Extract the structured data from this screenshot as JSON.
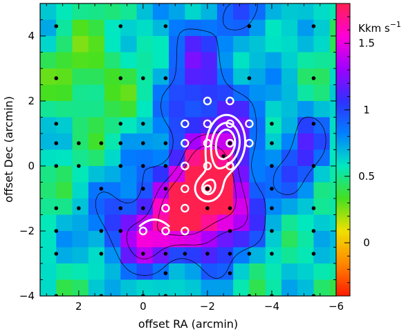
{
  "chart_data": {
    "type": "heatmap",
    "title": "",
    "xlabel": "offset RA (arcmin)",
    "ylabel": "offset Dec (arcmin)",
    "xlim": [
      3.2,
      -6.0
    ],
    "ylim": [
      -4.0,
      5.0
    ],
    "x_ticks": [
      2,
      0,
      -2,
      -4,
      -6
    ],
    "x_tick_labels": [
      "2",
      "0",
      "−2",
      "−4",
      "−6"
    ],
    "y_ticks": [
      4,
      2,
      0,
      -2,
      -4
    ],
    "y_tick_labels": [
      "4",
      "2",
      "0",
      "−2",
      "−4"
    ],
    "colorbar": {
      "unit_label": "Kkm s",
      "unit_exponent": "−1",
      "range": [
        -0.4,
        1.8
      ],
      "ticks": [
        0,
        0.5,
        1,
        1.5
      ],
      "tick_labels": [
        "0",
        "0.5",
        "1",
        "1.5"
      ],
      "colormap": [
        "#ff1a00",
        "#ff8800",
        "#f0e000",
        "#44e020",
        "#00e8c0",
        "#0080ff",
        "#3030ff",
        "#a000ff",
        "#ff00d8",
        "#ff2050"
      ]
    },
    "grid_step": 0.5,
    "peaks": [
      {
        "x": -2.0,
        "y": -0.7,
        "amp": 1.05,
        "sx": 0.8,
        "sy": 0.9
      },
      {
        "x": -1.3,
        "y": -1.6,
        "amp": 0.75,
        "sx": 1.5,
        "sy": 1.1
      },
      {
        "x": -2.2,
        "y": 1.2,
        "amp": 0.6,
        "sx": 1.0,
        "sy": 1.6
      },
      {
        "x": -1.4,
        "y": 3.8,
        "amp": 0.35,
        "sx": 0.7,
        "sy": 1.0
      },
      {
        "x": -3.6,
        "y": 4.8,
        "amp": 0.4,
        "sx": 0.6,
        "sy": 0.6
      },
      {
        "x": -5.0,
        "y": 0.5,
        "amp": 0.5,
        "sx": 0.5,
        "sy": 1.0
      },
      {
        "x": 0.2,
        "y": -2.2,
        "amp": 0.45,
        "sx": 0.9,
        "sy": 0.7
      },
      {
        "x": 1.6,
        "y": 2.8,
        "amp": -0.25,
        "sx": 0.9,
        "sy": 0.9
      }
    ],
    "base_level": 0.55,
    "contour_levels": [
      0.9,
      1.3,
      1.6
    ],
    "black_points": [
      [
        2.7,
        4.3
      ],
      [
        0.7,
        4.3
      ],
      [
        -0.7,
        4.3
      ],
      [
        -3.3,
        4.3
      ],
      [
        -5.3,
        4.3
      ],
      [
        2.7,
        2.7
      ],
      [
        0.7,
        2.7
      ],
      [
        0.0,
        2.7
      ],
      [
        -0.7,
        2.7
      ],
      [
        -3.3,
        2.7
      ],
      [
        -5.3,
        2.7
      ],
      [
        2.7,
        1.3
      ],
      [
        0.7,
        1.3
      ],
      [
        0.0,
        1.3
      ],
      [
        -4.0,
        1.3
      ],
      [
        -5.3,
        1.3
      ],
      [
        2.7,
        0.7
      ],
      [
        2.0,
        0.7
      ],
      [
        1.3,
        0.7
      ],
      [
        0.7,
        0.7
      ],
      [
        0.0,
        0.7
      ],
      [
        -0.7,
        0.7
      ],
      [
        -4.0,
        0.7
      ],
      [
        2.7,
        0.0
      ],
      [
        2.0,
        0.0
      ],
      [
        0.7,
        0.0
      ],
      [
        0.0,
        0.0
      ],
      [
        -0.7,
        0.0
      ],
      [
        -4.0,
        0.0
      ],
      [
        -5.3,
        0.0
      ],
      [
        1.3,
        -0.7
      ],
      [
        0.0,
        -0.7
      ],
      [
        -0.7,
        -0.7
      ],
      [
        -4.0,
        -0.7
      ],
      [
        2.7,
        -1.3
      ],
      [
        2.0,
        -1.3
      ],
      [
        0.7,
        -1.3
      ],
      [
        0.0,
        -1.3
      ],
      [
        -2.0,
        -1.3
      ],
      [
        -2.7,
        -1.3
      ],
      [
        -4.0,
        -1.3
      ],
      [
        -5.3,
        -1.3
      ],
      [
        2.7,
        -2.0
      ],
      [
        1.3,
        -2.0
      ],
      [
        0.7,
        -2.0
      ],
      [
        -2.7,
        -2.0
      ],
      [
        -4.0,
        -2.0
      ],
      [
        -5.3,
        -2.0
      ],
      [
        2.7,
        -2.7
      ],
      [
        1.3,
        -2.7
      ],
      [
        0.0,
        -2.7
      ],
      [
        -0.7,
        -2.7
      ],
      [
        -1.3,
        -2.7
      ],
      [
        -2.0,
        -2.7
      ],
      [
        -2.7,
        -2.7
      ],
      [
        -3.3,
        -2.7
      ],
      [
        -4.0,
        -2.7
      ],
      [
        -5.3,
        -2.7
      ],
      [
        -0.7,
        -3.3
      ],
      [
        -2.7,
        -3.3
      ],
      [
        2.7,
        -4.0
      ],
      [
        1.3,
        -4.0
      ],
      [
        0.0,
        -4.0
      ],
      [
        -0.7,
        -4.0
      ],
      [
        -3.3,
        -4.0
      ],
      [
        -4.0,
        -4.0
      ],
      [
        -5.3,
        -4.0
      ]
    ],
    "white_points": [
      [
        -2.0,
        2.0
      ],
      [
        -2.7,
        2.0
      ],
      [
        -1.3,
        1.3
      ],
      [
        -2.0,
        1.3
      ],
      [
        -2.7,
        1.3
      ],
      [
        -3.3,
        1.3
      ],
      [
        -1.3,
        0.7
      ],
      [
        -2.0,
        0.7
      ],
      [
        -2.7,
        0.7
      ],
      [
        -3.3,
        0.7
      ],
      [
        -1.3,
        0.0
      ],
      [
        -2.0,
        0.0
      ],
      [
        -2.7,
        0.0
      ],
      [
        -1.3,
        -0.7
      ],
      [
        -2.0,
        -0.7
      ],
      [
        -1.3,
        -1.3
      ],
      [
        -0.7,
        -1.3
      ],
      [
        0.0,
        -2.0
      ],
      [
        -0.7,
        -2.0
      ],
      [
        -1.3,
        -2.0
      ]
    ],
    "white_dots_inside": [
      [
        -2.0,
        -0.7
      ],
      [
        -2.7,
        0.7
      ],
      [
        -2.5,
        0.3
      ]
    ],
    "white_contour_levels": [
      0.25,
      0.5,
      0.75
    ]
  }
}
